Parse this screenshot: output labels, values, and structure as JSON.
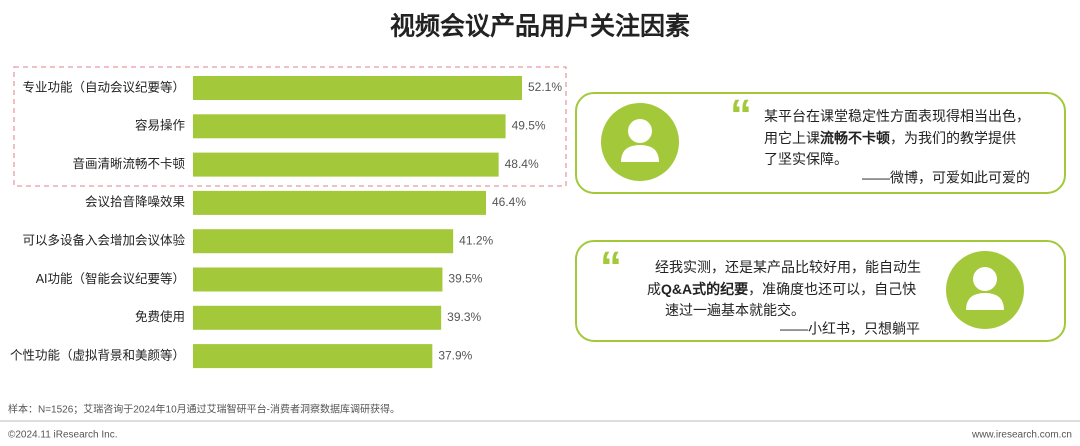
{
  "chart_data": {
    "type": "bar",
    "title": "视频会议产品用户关注因素",
    "categories": [
      "专业功能（自动会议纪要等）",
      "容易操作",
      "音画清晰流畅不卡顿",
      "会议拾音降噪效果",
      "可以多设备入会增加会议体验",
      "AI功能（智能会议纪要等）",
      "免费使用",
      "个性功能（虚拟背景和美颜等）"
    ],
    "values": [
      52.1,
      49.5,
      48.4,
      46.4,
      41.2,
      39.5,
      39.3,
      37.9
    ],
    "value_labels": [
      "52.1%",
      "49.5%",
      "48.4%",
      "46.4%",
      "41.2%",
      "39.5%",
      "39.3%",
      "37.9%"
    ],
    "color": "#a3c93a"
  },
  "quotes": [
    {
      "lines": [
        [
          "某平台在课堂稳定性方面表现得相当出色，"
        ],
        [
          "用它上课",
          "流畅不卡顿",
          "，为我们的教学提供"
        ],
        [
          "了坚实保障。"
        ]
      ],
      "source": "——微博，可爱如此可爱的"
    },
    {
      "lines": [
        [
          "经我实测，还是某产品比较好用，能自动生"
        ],
        [
          "成",
          "Q&A式的纪要",
          "，准确度也还可以，自己快"
        ],
        [
          "速过一遍基本就能交。"
        ]
      ],
      "source": "——小红书，只想躺平"
    }
  ],
  "footer": {
    "note": "样本：N=1526；艾瑞咨询于2024年10月通过艾瑞智研平台-消费者洞察数据库调研获得。",
    "copyright": "©2024.11 iResearch Inc.",
    "website": "www.iresearch.com.cn"
  }
}
